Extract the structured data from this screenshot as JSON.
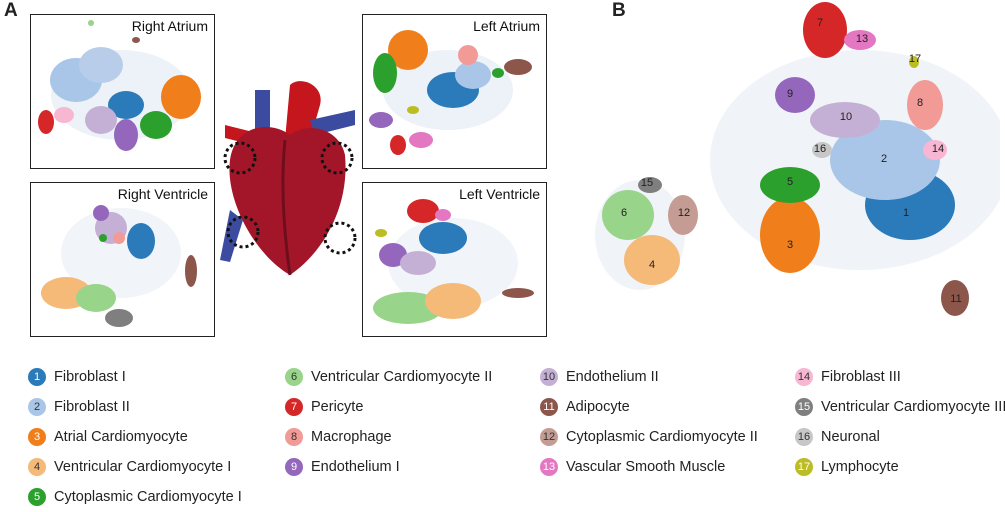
{
  "panels": {
    "a": "A",
    "b": "B"
  },
  "boxes": {
    "right_atrium": "Right Atrium",
    "left_atrium": "Left Atrium",
    "right_ventricle": "Right Ventricle",
    "left_ventricle": "Left Ventricle"
  },
  "clusters": [
    {
      "id": "1",
      "label": "Fibroblast I",
      "color": "#2b7bba"
    },
    {
      "id": "2",
      "label": "Fibroblast II",
      "color": "#a9c6e8"
    },
    {
      "id": "3",
      "label": "Atrial Cardiomyocyte",
      "color": "#f07f1b"
    },
    {
      "id": "4",
      "label": "Ventricular Cardiomyocyte I",
      "color": "#f5b978"
    },
    {
      "id": "5",
      "label": "Cytoplasmic Cardiomyocyte I",
      "color": "#2ca02c"
    },
    {
      "id": "6",
      "label": "Ventricular Cardiomyocyte II",
      "color": "#98d48a"
    },
    {
      "id": "7",
      "label": "Pericyte",
      "color": "#d62728"
    },
    {
      "id": "8",
      "label": "Macrophage",
      "color": "#f29a96"
    },
    {
      "id": "9",
      "label": "Endothelium I",
      "color": "#9467bd"
    },
    {
      "id": "10",
      "label": "Endothelium II",
      "color": "#c5b0d5"
    },
    {
      "id": "11",
      "label": "Adipocyte",
      "color": "#8c564b"
    },
    {
      "id": "12",
      "label": "Cytoplasmic Cardiomyocyte II",
      "color": "#c49c94"
    },
    {
      "id": "13",
      "label": "Vascular Smooth Muscle",
      "color": "#e377c2"
    },
    {
      "id": "14",
      "label": "Fibroblast III",
      "color": "#f7b6d2"
    },
    {
      "id": "15",
      "label": "Ventricular Cardiomyocyte III",
      "color": "#7f7f7f"
    },
    {
      "id": "16",
      "label": "Neuronal",
      "color": "#c7c7c7"
    },
    {
      "id": "17",
      "label": "Lymphocyte",
      "color": "#bcbd22"
    }
  ]
}
